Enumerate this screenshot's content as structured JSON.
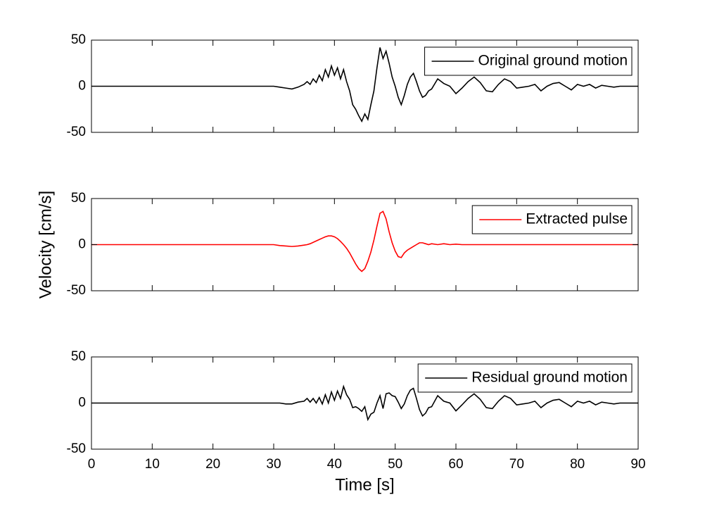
{
  "chart_data": [
    {
      "type": "line",
      "legend": "upper right",
      "xlim": [
        0,
        90
      ],
      "ylim": [
        -50,
        50
      ],
      "yticks": [
        -50,
        0,
        50
      ],
      "x": [
        0,
        10,
        20,
        30,
        31,
        32,
        33,
        34,
        35,
        35.5,
        36,
        36.5,
        37,
        37.5,
        38,
        38.5,
        39,
        39.5,
        40,
        40.5,
        41,
        41.5,
        42,
        42.5,
        43,
        43.5,
        44,
        44.5,
        45,
        45.5,
        46,
        46.5,
        47,
        47.5,
        48,
        48.5,
        49,
        49.5,
        50,
        50.5,
        51,
        51.5,
        52,
        52.5,
        53,
        53.5,
        54,
        54.5,
        55,
        55.5,
        56,
        57,
        58,
        59,
        60,
        61,
        62,
        63,
        64,
        65,
        66,
        67,
        68,
        69,
        70,
        71,
        72,
        73,
        74,
        75,
        76,
        77,
        78,
        79,
        80,
        81,
        82,
        83,
        84,
        85,
        86,
        87,
        88,
        89,
        90
      ],
      "series": [
        {
          "name": "Original ground motion",
          "color": "#000000",
          "values": [
            0,
            0,
            0,
            0,
            -1,
            -2,
            -3,
            -1,
            2,
            5,
            2,
            8,
            4,
            12,
            6,
            18,
            10,
            22,
            12,
            20,
            8,
            18,
            5,
            -5,
            -20,
            -25,
            -32,
            -38,
            -30,
            -36,
            -20,
            -5,
            20,
            42,
            30,
            38,
            25,
            10,
            0,
            -12,
            -20,
            -10,
            2,
            10,
            14,
            5,
            -5,
            -12,
            -10,
            -5,
            -3,
            8,
            3,
            0,
            -8,
            -2,
            5,
            10,
            4,
            -5,
            -6,
            2,
            8,
            5,
            -2,
            -1,
            0,
            2,
            -5,
            0,
            3,
            4,
            0,
            -4,
            2,
            0,
            2,
            -2,
            1,
            0,
            -1,
            0,
            0,
            0,
            0
          ]
        }
      ]
    },
    {
      "type": "line",
      "legend": "upper right",
      "ylabel": "Velocity [cm/s]",
      "xlim": [
        0,
        90
      ],
      "ylim": [
        -50,
        50
      ],
      "yticks": [
        -50,
        0,
        50
      ],
      "x": [
        0,
        10,
        20,
        30,
        31,
        32,
        33,
        34,
        35,
        35.5,
        36,
        36.5,
        37,
        37.5,
        38,
        38.5,
        39,
        39.5,
        40,
        40.5,
        41,
        41.5,
        42,
        42.5,
        43,
        43.5,
        44,
        44.5,
        45,
        45.5,
        46,
        46.5,
        47,
        47.5,
        48,
        48.5,
        49,
        49.5,
        50,
        50.5,
        51,
        51.5,
        52,
        52.5,
        53,
        53.5,
        54,
        54.5,
        55,
        55.5,
        56,
        57,
        58,
        59,
        60,
        61,
        62,
        63,
        64,
        65,
        66,
        67,
        68,
        69,
        70,
        71,
        72,
        73,
        74,
        75,
        76,
        77,
        78,
        79,
        80,
        81,
        82,
        83,
        84,
        85,
        86,
        87,
        88,
        89,
        90
      ],
      "series": [
        {
          "name": "Extracted pulse",
          "color": "#ff0000",
          "values": [
            0,
            0,
            0,
            0,
            -1,
            -1.5,
            -2,
            -1.5,
            -0.5,
            0,
            1,
            2.5,
            4,
            5.5,
            7,
            8.5,
            9.5,
            9.5,
            8.5,
            6.5,
            3.5,
            0,
            -4,
            -9,
            -15,
            -21,
            -26,
            -29,
            -26,
            -18,
            -8,
            5,
            20,
            34,
            36,
            28,
            14,
            2,
            -7,
            -13,
            -14,
            -9,
            -6,
            -4,
            -2,
            0,
            2,
            2,
            1,
            0,
            1,
            0,
            1,
            0,
            0.5,
            0,
            0,
            0,
            0,
            0,
            0,
            0,
            0,
            0,
            0,
            0,
            0,
            0,
            0,
            0,
            0,
            0,
            0,
            0,
            0,
            0,
            0,
            0,
            0,
            0,
            0,
            0,
            0,
            0,
            0
          ]
        }
      ]
    },
    {
      "type": "line",
      "legend": "upper right",
      "xlabel": "Time [s]",
      "xlim": [
        0,
        90
      ],
      "xticks": [
        0,
        10,
        20,
        30,
        40,
        50,
        60,
        70,
        80,
        90
      ],
      "ylim": [
        -50,
        50
      ],
      "yticks": [
        -50,
        0,
        50
      ],
      "x": [
        0,
        10,
        20,
        30,
        31,
        32,
        33,
        34,
        35,
        35.5,
        36,
        36.5,
        37,
        37.5,
        38,
        38.5,
        39,
        39.5,
        40,
        40.5,
        41,
        41.5,
        42,
        42.5,
        43,
        43.5,
        44,
        44.5,
        45,
        45.5,
        46,
        46.5,
        47,
        47.5,
        48,
        48.5,
        49,
        49.5,
        50,
        50.5,
        51,
        51.5,
        52,
        52.5,
        53,
        53.5,
        54,
        54.5,
        55,
        55.5,
        56,
        57,
        58,
        59,
        60,
        61,
        62,
        63,
        64,
        65,
        66,
        67,
        68,
        69,
        70,
        71,
        72,
        73,
        74,
        75,
        76,
        77,
        78,
        79,
        80,
        81,
        82,
        83,
        84,
        85,
        86,
        87,
        88,
        89,
        90
      ],
      "series": [
        {
          "name": "Residual ground motion",
          "color": "#000000",
          "values": [
            0,
            0,
            0,
            0,
            0,
            -1,
            -1,
            1,
            2,
            5,
            1,
            5,
            0,
            6,
            -1,
            9,
            0,
            12,
            3,
            13,
            5,
            18,
            9,
            4,
            -5,
            -4,
            -6,
            -9,
            -4,
            -18,
            -12,
            -10,
            0,
            8,
            -6,
            10,
            11,
            8,
            7,
            1,
            -6,
            -1,
            8,
            14,
            16,
            5,
            -7,
            -14,
            -11,
            -5,
            -4,
            8,
            2,
            0,
            -8.5,
            -2,
            5,
            10,
            4,
            -5,
            -6,
            2,
            8,
            5,
            -2,
            -1,
            0,
            2,
            -5,
            0,
            3,
            4,
            0,
            -4,
            2,
            0,
            2,
            -2,
            1,
            0,
            -1,
            0,
            0,
            0,
            0
          ]
        }
      ]
    }
  ]
}
